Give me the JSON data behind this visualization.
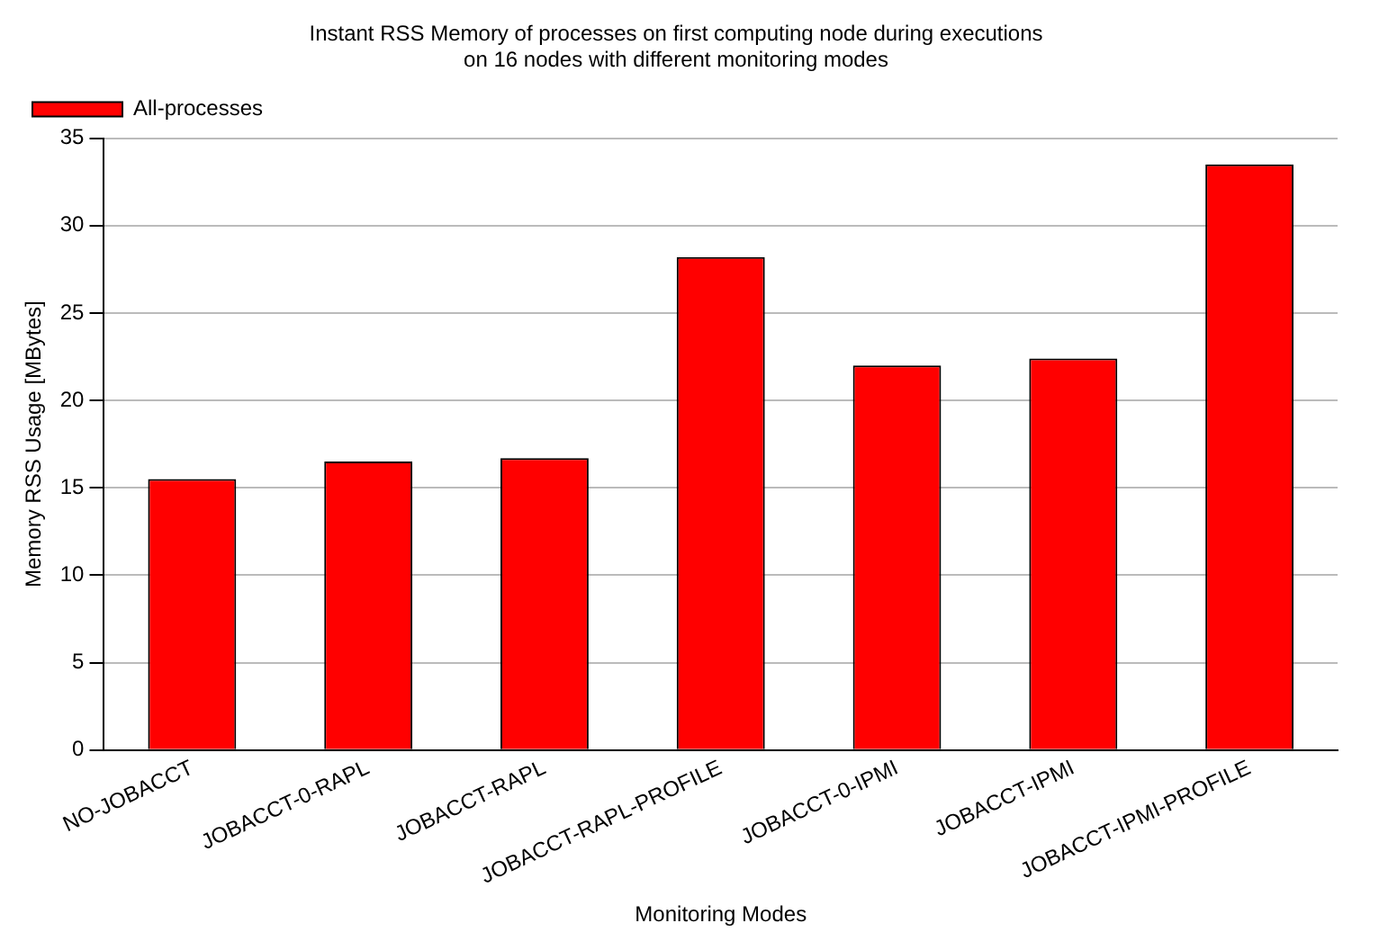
{
  "chart_data": {
    "type": "bar",
    "title": "Instant RSS Memory of processes on first computing node during executions\non 16 nodes with different monitoring modes",
    "xlabel": "Monitoring Modes",
    "ylabel": "Memory RSS Usage [MBytes]",
    "categories": [
      "NO-JOBACCT",
      "JOBACCT-0-RAPL",
      "JOBACCT-RAPL",
      "JOBACCT-RAPL-PROFILE",
      "JOBACCT-0-IPMI",
      "JOBACCT-IPMI",
      "JOBACCT-IPMI-PROFILE"
    ],
    "series": [
      {
        "name": "All-processes",
        "color": "#ff0000",
        "values": [
          15.5,
          16.5,
          16.7,
          28.2,
          22.0,
          22.4,
          33.5
        ]
      }
    ],
    "ylim": [
      0,
      35
    ],
    "yticks": [
      0,
      5,
      10,
      15,
      20,
      25,
      30,
      35
    ],
    "grid": "y",
    "legend": "top left"
  }
}
